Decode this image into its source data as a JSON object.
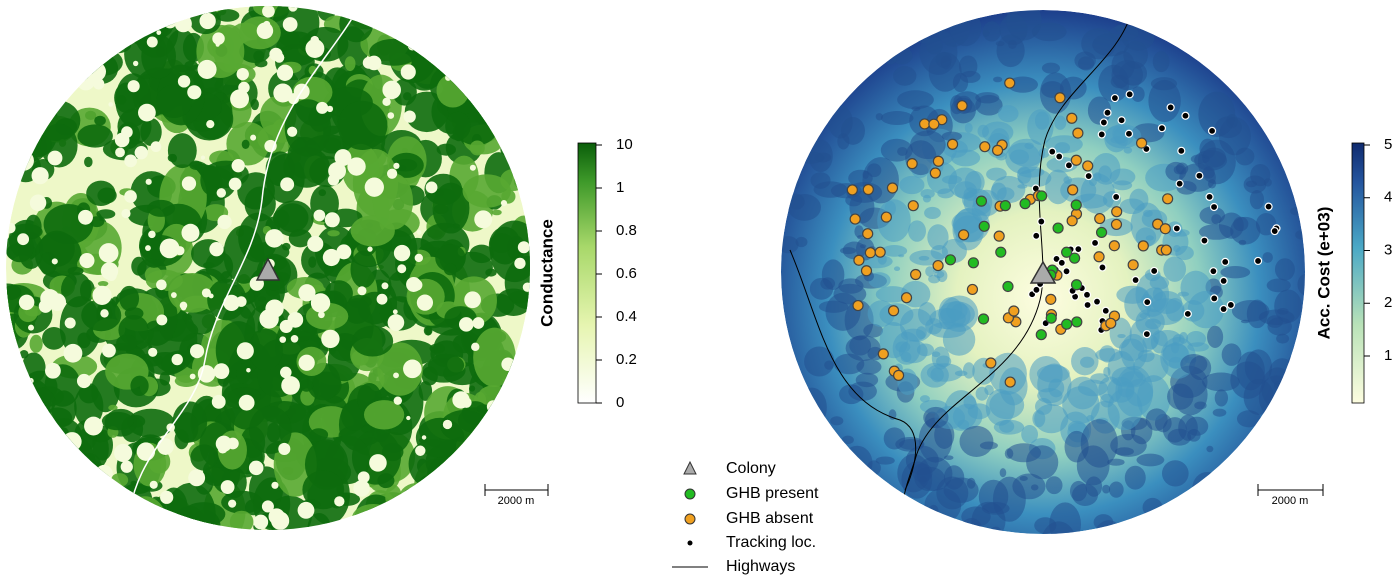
{
  "left_map": {
    "colorbar": {
      "title": "Conductance",
      "ticks": [
        "10",
        "1",
        "0.8",
        "0.6",
        "0.4",
        "0.2",
        "0"
      ]
    },
    "scale_bar": "2000 m"
  },
  "right_map": {
    "colorbar": {
      "title": "Acc. Cost (e+03)",
      "ticks": [
        "5",
        "4",
        "3",
        "2",
        "1"
      ]
    },
    "scale_bar": "2000 m"
  },
  "legend": {
    "items": [
      "Colony",
      "GHB present",
      "GHB absent",
      "Tracking loc.",
      "Highways"
    ]
  }
}
